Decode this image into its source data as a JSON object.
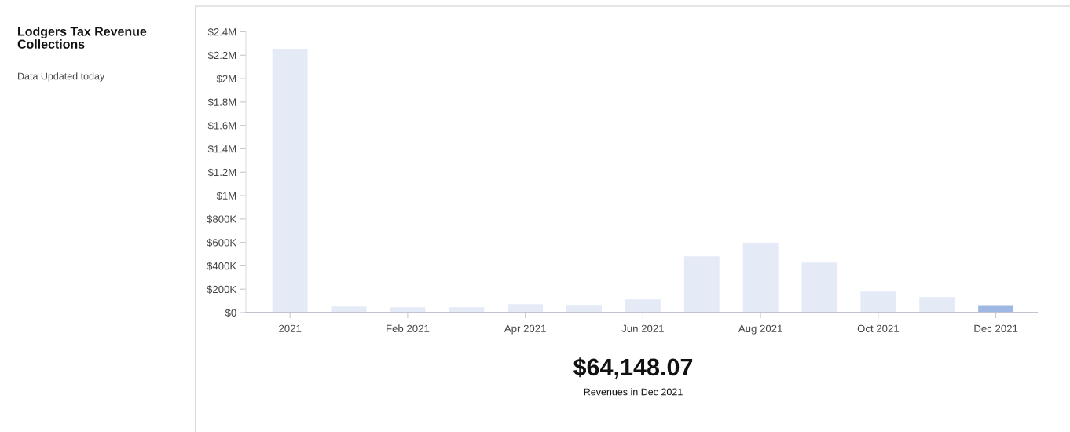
{
  "chart_data": {
    "type": "bar",
    "title": "Lodgers Tax Revenue Collections",
    "subtitle": "Data Updated today",
    "categories": [
      "2021",
      null,
      "Feb 2021",
      null,
      "Apr 2021",
      null,
      "Jun 2021",
      null,
      "Aug 2021",
      null,
      "Oct 2021",
      null,
      "Dec 2021"
    ],
    "values": [
      2250000,
      52000,
      45000,
      45000,
      72000,
      66000,
      113000,
      481000,
      596000,
      428000,
      179000,
      132000,
      64000
    ],
    "colors": [
      "#e4eaf6",
      "#e4eaf6",
      "#e4eaf6",
      "#e4eaf6",
      "#e4eaf6",
      "#e4eaf6",
      "#e4eaf6",
      "#e4eaf6",
      "#e4eaf6",
      "#e4eaf6",
      "#e4eaf6",
      "#e4eaf6",
      "#9fb7e3"
    ],
    "ylim": [
      0,
      2400000
    ],
    "yticks": [
      {
        "value": 0,
        "label": "$0"
      },
      {
        "value": 200000,
        "label": "$200K"
      },
      {
        "value": 400000,
        "label": "$400K"
      },
      {
        "value": 600000,
        "label": "$600K"
      },
      {
        "value": 800000,
        "label": "$800K"
      },
      {
        "value": 1000000,
        "label": "$1M"
      },
      {
        "value": 1200000,
        "label": "$1.2M"
      },
      {
        "value": 1400000,
        "label": "$1.4M"
      },
      {
        "value": 1600000,
        "label": "$1.6M"
      },
      {
        "value": 1800000,
        "label": "$1.8M"
      },
      {
        "value": 2000000,
        "label": "$2M"
      },
      {
        "value": 2200000,
        "label": "$2.2M"
      },
      {
        "value": 2400000,
        "label": "$2.4M"
      }
    ],
    "grid": false,
    "legend": false,
    "annotations": [
      "$64,148.07",
      "Revenues in Dec 2021"
    ]
  }
}
